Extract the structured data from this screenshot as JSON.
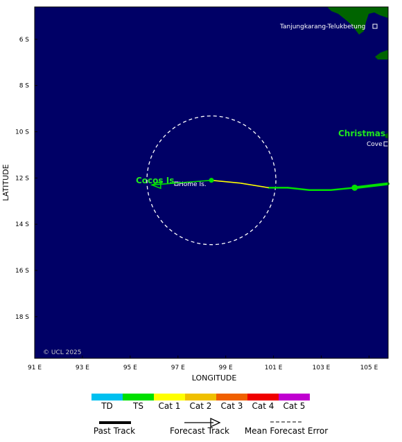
{
  "map": {
    "lon_range": [
      91,
      105.8
    ],
    "lat_range": [
      4.6,
      19.8
    ],
    "ocean_color": "#000066",
    "land_color": "#006400",
    "x_ticks": [
      {
        "value": 91,
        "label": "91 E"
      },
      {
        "value": 93,
        "label": "93 E"
      },
      {
        "value": 95,
        "label": "95 E"
      },
      {
        "value": 97,
        "label": "97 E"
      },
      {
        "value": 99,
        "label": "99 E"
      },
      {
        "value": 101,
        "label": "101 E"
      },
      {
        "value": 103,
        "label": "103 E"
      },
      {
        "value": 105,
        "label": "105 E"
      }
    ],
    "y_ticks": [
      {
        "value": 6,
        "label": "6 S"
      },
      {
        "value": 8,
        "label": "8 S"
      },
      {
        "value": 10,
        "label": "10 S"
      },
      {
        "value": 12,
        "label": "12 S"
      },
      {
        "value": 14,
        "label": "14 S"
      },
      {
        "value": 16,
        "label": "16 S"
      },
      {
        "value": 18,
        "label": "18 S"
      }
    ],
    "xlabel": "LONGITUDE",
    "ylabel": "LATITUDE",
    "copyright": "© UCL 2025",
    "places": {
      "tanjung": "Tanjungkarang-Telukbetung",
      "christmas": "Christmas",
      "cove": "Cove",
      "cocos": "Cocos Is",
      "home": "Home Is."
    }
  },
  "track": {
    "past": [
      {
        "lon": 105.8,
        "lat": 12.25,
        "category": "TS"
      },
      {
        "lon": 104.4,
        "lat": 12.42,
        "category": "TS"
      },
      {
        "lon": 103.4,
        "lat": 12.52,
        "category": "TS"
      },
      {
        "lon": 102.5,
        "lat": 12.52,
        "category": "TS"
      },
      {
        "lon": 101.6,
        "lat": 12.42,
        "category": "TS"
      },
      {
        "lon": 100.8,
        "lat": 12.42,
        "category": "TS"
      }
    ],
    "forecast": [
      {
        "lon": 100.8,
        "lat": 12.42,
        "category": "Cat 1"
      },
      {
        "lon": 99.6,
        "lat": 12.22,
        "category": "Cat 1"
      },
      {
        "lon": 98.4,
        "lat": 12.1,
        "category": "TS"
      },
      {
        "lon": 95.9,
        "lat": 12.3,
        "category": "TS"
      }
    ],
    "current_position": {
      "lon": 104.4,
      "lat": 12.42
    },
    "forecast_position": {
      "lon": 98.4,
      "lat": 12.1
    },
    "error_circle": {
      "lon": 98.4,
      "lat": 12.1,
      "radius_deg": 2.7
    }
  },
  "legend": {
    "categories": [
      {
        "label": "TD",
        "color": "#00c0f0"
      },
      {
        "label": "TS",
        "color": "#00e000"
      },
      {
        "label": "Cat 1",
        "color": "#ffff00"
      },
      {
        "label": "Cat 2",
        "color": "#f0c000"
      },
      {
        "label": "Cat 3",
        "color": "#f06000"
      },
      {
        "label": "Cat 4",
        "color": "#f00000"
      },
      {
        "label": "Cat 5",
        "color": "#c000d0"
      }
    ],
    "past_track": "Past Track",
    "forecast_track": "Forecast Track",
    "mean_error": "Mean Forecast Error"
  }
}
